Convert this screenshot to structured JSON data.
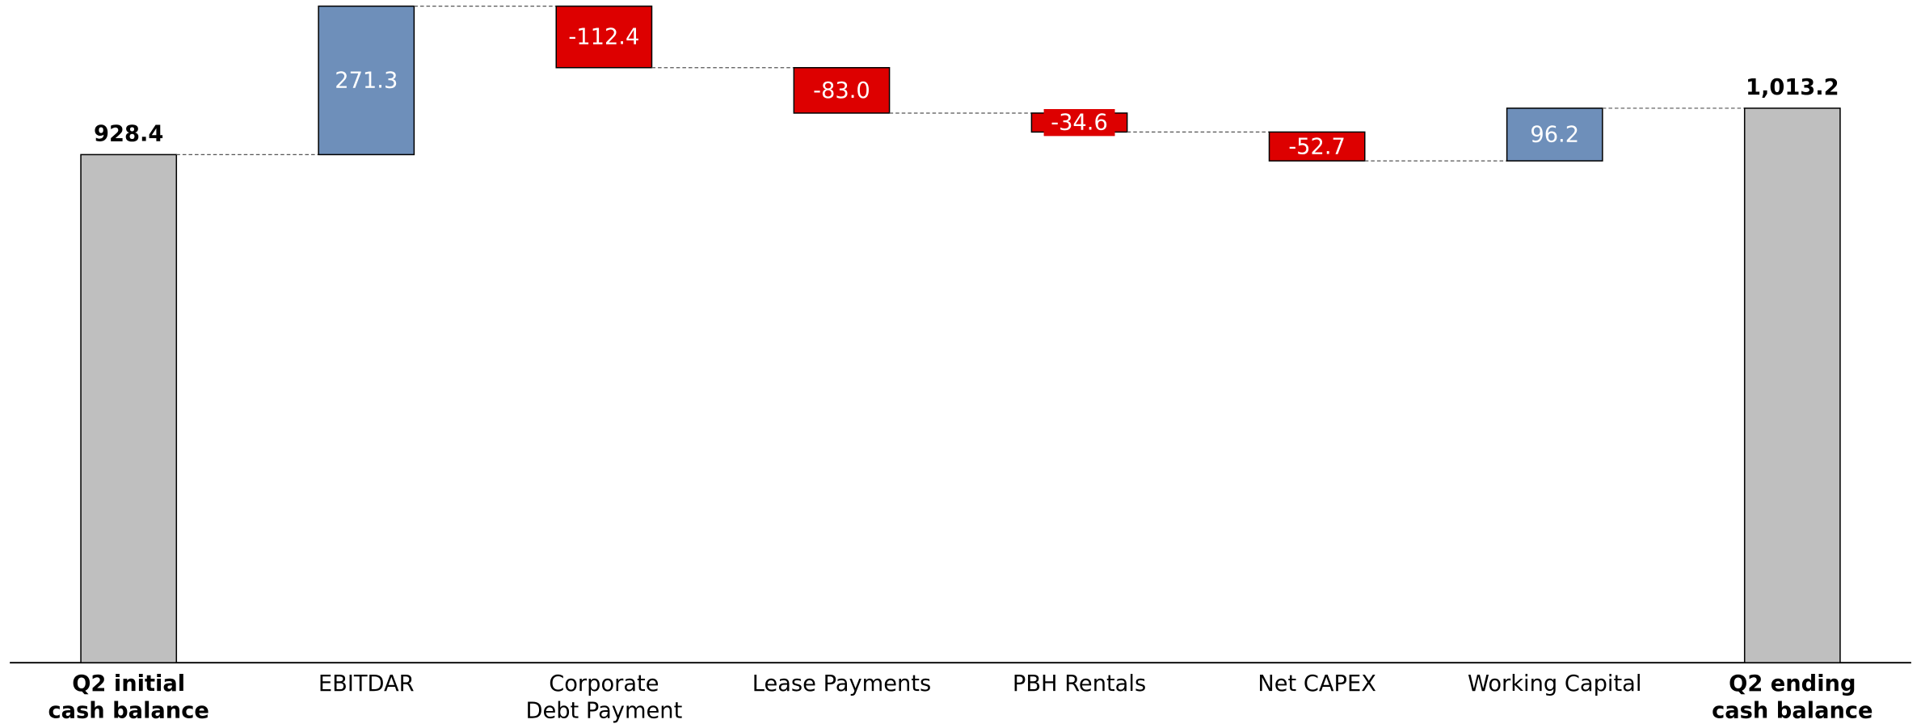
{
  "chart_data": {
    "type": "waterfall",
    "categories": [
      [
        "Q2 initial",
        "cash balance"
      ],
      [
        "EBITDAR"
      ],
      [
        "Corporate",
        "Debt Payment"
      ],
      [
        "Lease Payments"
      ],
      [
        "PBH Rentals"
      ],
      [
        "Net CAPEX"
      ],
      [
        "Working Capital"
      ],
      [
        "Q2 ending",
        "cash balance"
      ]
    ],
    "values": [
      928.4,
      271.3,
      -112.4,
      -83.0,
      -34.6,
      -52.7,
      96.2,
      1013.2
    ],
    "value_labels": [
      "928.4",
      "271.3",
      "-112.4",
      "-83.0",
      "-34.6",
      "-52.7",
      "96.2",
      "1,013.2"
    ],
    "is_total": [
      true,
      false,
      false,
      false,
      false,
      false,
      false,
      true
    ],
    "colors": {
      "total": "#bfbfbf",
      "increase": "#6e8fba",
      "decrease": "#dd0000"
    }
  }
}
